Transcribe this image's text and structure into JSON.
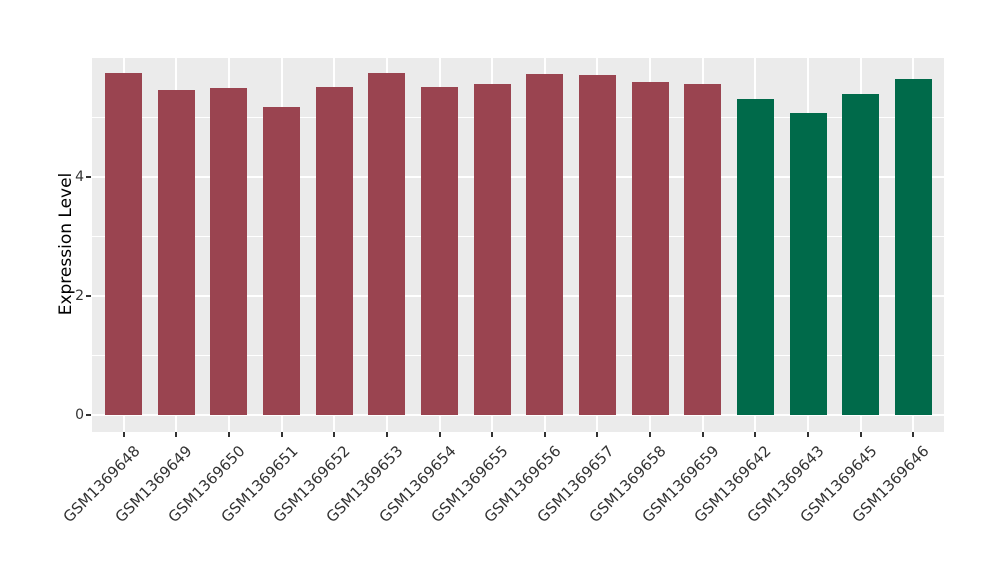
{
  "chart_data": {
    "type": "bar",
    "title": "",
    "xlabel": "",
    "ylabel": "Expression Level",
    "categories": [
      "GSM1369648",
      "GSM1369649",
      "GSM1369650",
      "GSM1369651",
      "GSM1369652",
      "GSM1369653",
      "GSM1369654",
      "GSM1369655",
      "GSM1369656",
      "GSM1369657",
      "GSM1369658",
      "GSM1369659",
      "GSM1369642",
      "GSM1369643",
      "GSM1369645",
      "GSM1369646"
    ],
    "values": [
      5.73,
      5.46,
      5.48,
      5.17,
      5.5,
      5.73,
      5.5,
      5.55,
      5.72,
      5.7,
      5.58,
      5.56,
      5.31,
      5.07,
      5.38,
      5.63
    ],
    "bar_groups": [
      "group1",
      "group1",
      "group1",
      "group1",
      "group1",
      "group1",
      "group1",
      "group1",
      "group1",
      "group1",
      "group1",
      "group1",
      "group2",
      "group2",
      "group2",
      "group2"
    ],
    "group_colors": {
      "group1": "#9A4450",
      "group2": "#006A4A"
    },
    "y_ticks": [
      0,
      2,
      4
    ],
    "y_major_gridlines": [
      0,
      2,
      4,
      6
    ],
    "y_minor_gridlines": [
      1,
      3,
      5
    ],
    "ylim": [
      -0.29,
      6.02
    ],
    "grid": true,
    "legend_position": "none",
    "colors": {
      "panel_background": "#EBEBEB",
      "gridline": "#FFFFFF",
      "axis_text": "#333333",
      "axis_title": "#000000",
      "tick_mark": "#333333"
    }
  }
}
